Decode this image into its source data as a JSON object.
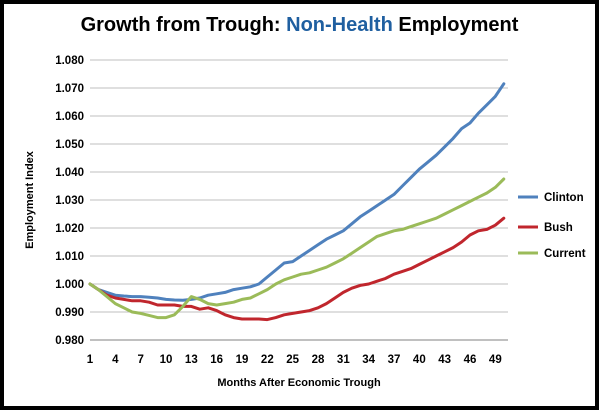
{
  "chart_data": {
    "type": "line",
    "title_parts": [
      "Growth from Trough:",
      "Non-Health",
      "Employment"
    ],
    "title_colors": [
      "#000000",
      "#1f5fa0",
      "#000000"
    ],
    "xlabel": "Months After Economic Trough",
    "ylabel": "Employment Index",
    "ylim": [
      0.98,
      1.08
    ],
    "yticks": [
      "0.980",
      "0.990",
      "1.000",
      "1.010",
      "1.020",
      "1.030",
      "1.040",
      "1.050",
      "1.060",
      "1.070",
      "1.080"
    ],
    "xticks": [
      "1",
      "4",
      "7",
      "10",
      "13",
      "16",
      "19",
      "22",
      "25",
      "28",
      "31",
      "34",
      "37",
      "40",
      "43",
      "46",
      "49"
    ],
    "x": [
      1,
      2,
      3,
      4,
      5,
      6,
      7,
      8,
      9,
      10,
      11,
      12,
      13,
      14,
      15,
      16,
      17,
      18,
      19,
      20,
      21,
      22,
      23,
      24,
      25,
      26,
      27,
      28,
      29,
      30,
      31,
      32,
      33,
      34,
      35,
      36,
      37,
      38,
      39,
      40,
      41,
      42,
      43,
      44,
      45,
      46,
      47,
      48,
      49,
      50
    ],
    "grid": "horizontal",
    "legend_position": "right",
    "series": [
      {
        "name": "Clinton",
        "color": "#4f81bd",
        "values": [
          1.0,
          0.998,
          0.997,
          0.996,
          0.9957,
          0.9955,
          0.9955,
          0.9953,
          0.995,
          0.9945,
          0.9943,
          0.9942,
          0.9945,
          0.995,
          0.996,
          0.9965,
          0.997,
          0.998,
          0.9985,
          0.999,
          1.0,
          1.0025,
          1.005,
          1.0075,
          1.008,
          1.01,
          1.012,
          1.014,
          1.016,
          1.0175,
          1.019,
          1.0215,
          1.024,
          1.026,
          1.028,
          1.03,
          1.032,
          1.035,
          1.038,
          1.041,
          1.0435,
          1.046,
          1.049,
          1.052,
          1.0555,
          1.0575,
          1.061,
          1.064,
          1.067,
          1.0715
        ]
      },
      {
        "name": "Bush",
        "color": "#c0262d",
        "values": [
          1.0,
          0.998,
          0.996,
          0.995,
          0.9945,
          0.994,
          0.994,
          0.9935,
          0.9925,
          0.9925,
          0.9925,
          0.992,
          0.992,
          0.991,
          0.9915,
          0.9905,
          0.989,
          0.988,
          0.9875,
          0.9875,
          0.9875,
          0.9873,
          0.988,
          0.989,
          0.9895,
          0.99,
          0.9905,
          0.9915,
          0.993,
          0.995,
          0.997,
          0.9985,
          0.9995,
          1.0,
          1.001,
          1.002,
          1.0035,
          1.0045,
          1.0055,
          1.007,
          1.0085,
          1.01,
          1.0115,
          1.013,
          1.015,
          1.0175,
          1.019,
          1.0195,
          1.021,
          1.0235
        ]
      },
      {
        "name": "Current",
        "color": "#9bbb59",
        "values": [
          1.0,
          0.998,
          0.9955,
          0.993,
          0.9915,
          0.99,
          0.9895,
          0.9888,
          0.988,
          0.988,
          0.989,
          0.992,
          0.9955,
          0.9945,
          0.993,
          0.9925,
          0.993,
          0.9935,
          0.9945,
          0.995,
          0.9965,
          0.998,
          1.0,
          1.0015,
          1.0025,
          1.0035,
          1.004,
          1.005,
          1.006,
          1.0075,
          1.009,
          1.011,
          1.013,
          1.015,
          1.017,
          1.018,
          1.019,
          1.0195,
          1.0205,
          1.0215,
          1.0225,
          1.0235,
          1.025,
          1.0265,
          1.028,
          1.0295,
          1.031,
          1.0325,
          1.0345,
          1.0375
        ]
      }
    ]
  }
}
